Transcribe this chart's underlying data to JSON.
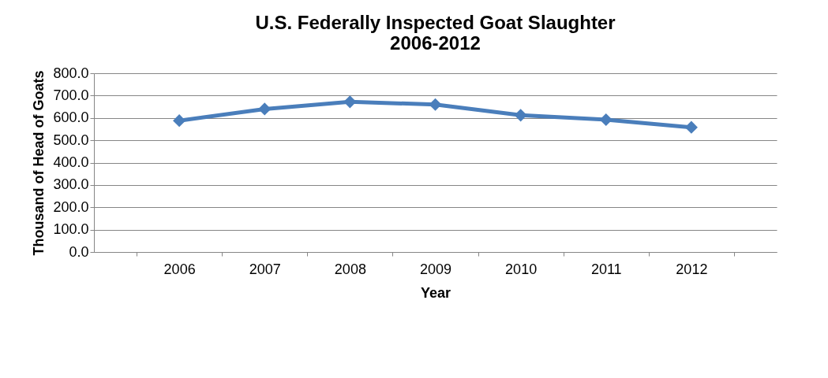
{
  "chart_data": {
    "type": "line",
    "title": "U.S. Federally Inspected Goat Slaughter\n2006-2012",
    "xlabel": "Year",
    "ylabel": "Thousand of Head of Goats",
    "categories": [
      "2006",
      "2007",
      "2008",
      "2009",
      "2010",
      "2011",
      "2012"
    ],
    "series": [
      {
        "color": "#4a7ebb",
        "values": [
          588,
          640,
          672,
          660,
          612,
          592,
          558
        ]
      }
    ],
    "ylim": [
      0,
      800
    ],
    "yticks": [
      {
        "value": 0,
        "label": "0.0"
      },
      {
        "value": 100,
        "label": "100.0"
      },
      {
        "value": 200,
        "label": "200.0"
      },
      {
        "value": 300,
        "label": "300.0"
      },
      {
        "value": 400,
        "label": "400.0"
      },
      {
        "value": 500,
        "label": "500.0"
      },
      {
        "value": 600,
        "label": "600.0"
      },
      {
        "value": 700,
        "label": "700.0"
      },
      {
        "value": 800,
        "label": "800.0"
      }
    ],
    "grid": "y",
    "marker": "diamond",
    "line_style": "solid"
  }
}
